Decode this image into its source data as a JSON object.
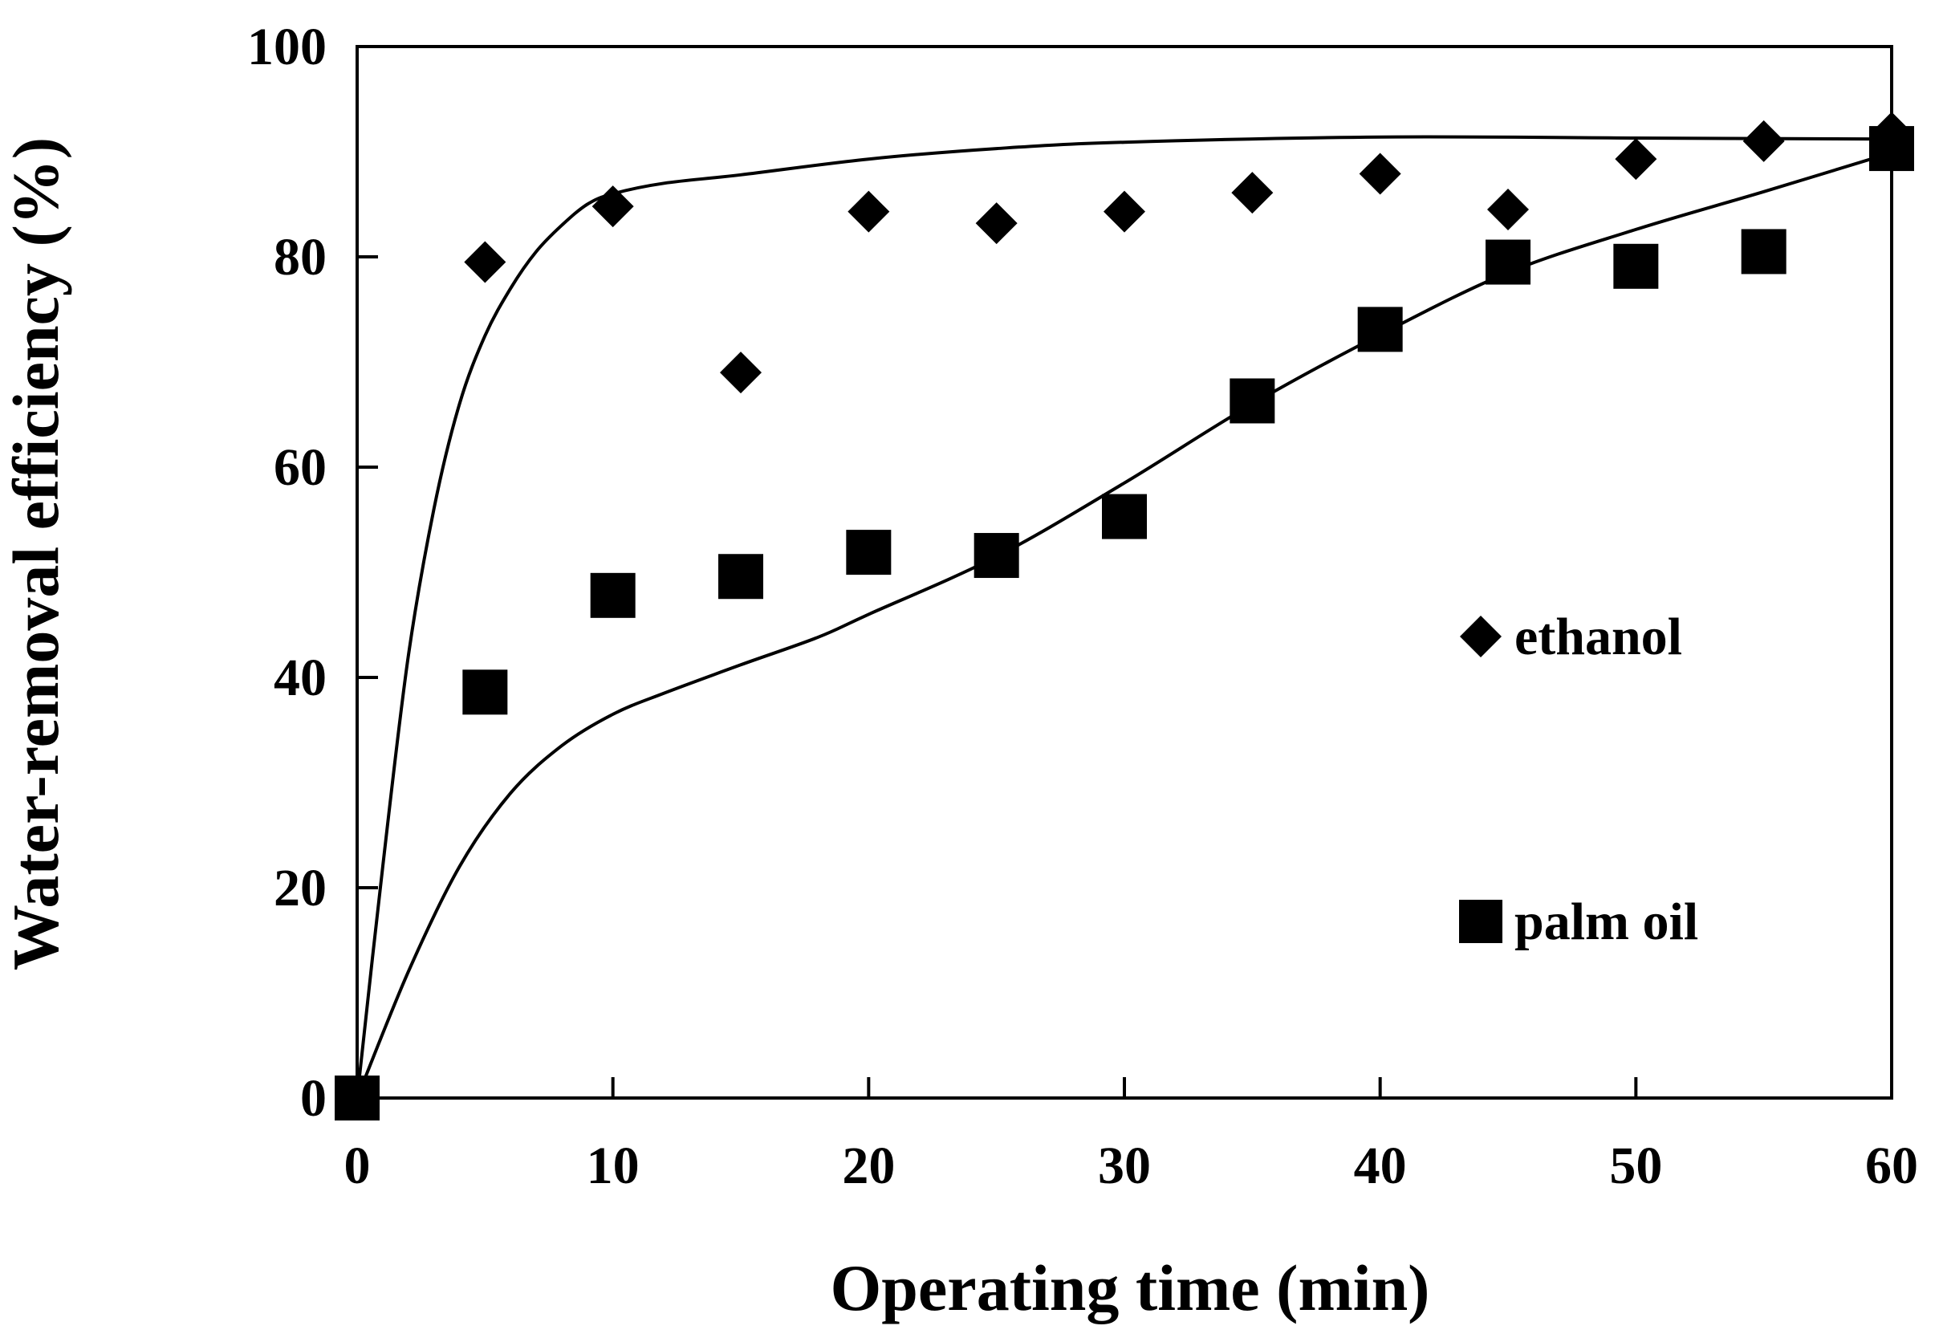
{
  "chart_data": {
    "type": "scatter",
    "title": "",
    "xlabel": "Operating time (min)",
    "ylabel": "Water-removal efficiency (%)",
    "xlim": [
      0,
      60
    ],
    "ylim": [
      0,
      100
    ],
    "xticks": [
      0,
      10,
      20,
      30,
      40,
      50,
      60
    ],
    "yticks": [
      0,
      20,
      40,
      60,
      80,
      100
    ],
    "xtick_labels": [
      "0",
      "10",
      "20",
      "30",
      "40",
      "50",
      "60"
    ],
    "ytick_labels": [
      "0",
      "20",
      "40",
      "60",
      "80",
      "100"
    ],
    "grid": false,
    "legend_position": "right",
    "series": [
      {
        "name": "ethanol",
        "marker": "diamond",
        "color": "#000000",
        "x": [
          0,
          5,
          10,
          15,
          20,
          25,
          30,
          35,
          40,
          45,
          50,
          55,
          60
        ],
        "y": [
          0,
          79.5,
          84.8,
          69,
          84.3,
          83.2,
          84.3,
          86.1,
          87.9,
          84.5,
          89.3,
          91,
          91.8
        ],
        "fit": {
          "x": [
            0,
            1,
            2,
            3,
            4,
            5,
            6,
            7,
            8,
            9,
            10,
            12,
            15,
            20,
            25,
            30,
            40,
            50,
            60
          ],
          "y": [
            0,
            22,
            42,
            56,
            66,
            72.5,
            77,
            80.5,
            83,
            85,
            86,
            87,
            87.8,
            89.3,
            90.3,
            90.9,
            91.4,
            91.3,
            91.2
          ]
        }
      },
      {
        "name": "palm oil",
        "marker": "square",
        "color": "#000000",
        "x": [
          0,
          5,
          10,
          15,
          20,
          25,
          30,
          35,
          40,
          45,
          50,
          55,
          60
        ],
        "y": [
          0,
          38.6,
          47.8,
          49.6,
          51.9,
          51.6,
          55.3,
          66.3,
          73.1,
          79.5,
          79.1,
          80.5,
          90.3
        ],
        "fit": {
          "x": [
            0,
            2,
            4,
            6,
            8,
            10,
            12,
            15,
            18,
            20,
            25,
            30,
            35,
            40,
            45,
            50,
            55,
            60
          ],
          "y": [
            0,
            12,
            22,
            29,
            33.5,
            36.5,
            38.5,
            41.2,
            43.8,
            46,
            51.5,
            58.5,
            66,
            72.6,
            78.5,
            82.6,
            86.2,
            89.9
          ]
        }
      }
    ]
  }
}
